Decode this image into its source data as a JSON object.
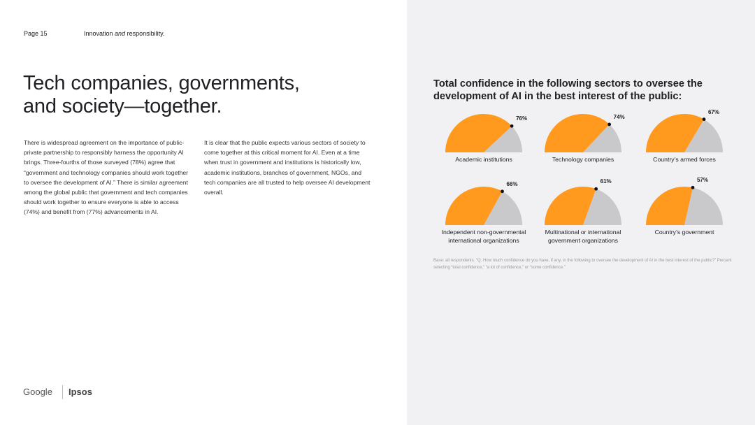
{
  "header": {
    "page": "Page 15",
    "section_prefix": "Innovation ",
    "section_italic": "and",
    "section_suffix": " responsibility."
  },
  "title": {
    "line1": "Tech companies, governments,",
    "line2": "and society—together."
  },
  "body": {
    "col1": "There is widespread agreement on the importance of public-private partnership to responsibly harness the opportunity AI brings. Three-fourths of those surveyed (78%) agree that “government and technology companies should work together to oversee the development of AI.” There is similar agreement among the global public that government and tech companies should work together to ensure everyone is able to access (74%) and benefit from (77%) advancements in AI.",
    "col2": "It is clear that the public expects various sectors of society to come together at this critical moment for AI. Even at a time when trust in government and institutions is historically low, academic institutions, branches of government, NGOs, and tech companies are all trusted to help oversee AI development overall."
  },
  "brands": {
    "google": "Google",
    "ipsos": "Ipsos"
  },
  "colors": {
    "filled": "#ff9a1f",
    "remainder": "#c9c9cc",
    "panel": "#f1f1f3"
  },
  "chart_data": {
    "type": "pie",
    "title": "Total confidence in the following sectors to oversee the development of AI in the best interest of the public:",
    "unit": "%",
    "items": [
      {
        "label": "Academic institutions",
        "value": 76,
        "value_label": "76%"
      },
      {
        "label": "Technology companies",
        "value": 74,
        "value_label": "74%"
      },
      {
        "label": "Country’s armed forces",
        "value": 67,
        "value_label": "67%"
      },
      {
        "label": "Independent non-governmental international organizations",
        "value": 66,
        "value_label": "66%"
      },
      {
        "label": "Multinational or international government organizations",
        "value": 61,
        "value_label": "61%"
      },
      {
        "label": "Country’s government",
        "value": 57,
        "value_label": "57%"
      }
    ]
  },
  "footnote": "Base: all respondents. “Q. How much confidence do you have, if any, in the following to oversee the development of AI in the best interest of the public?” Percent selecting “total confidence,” “a lot of confidence,” or “some confidence.”"
}
